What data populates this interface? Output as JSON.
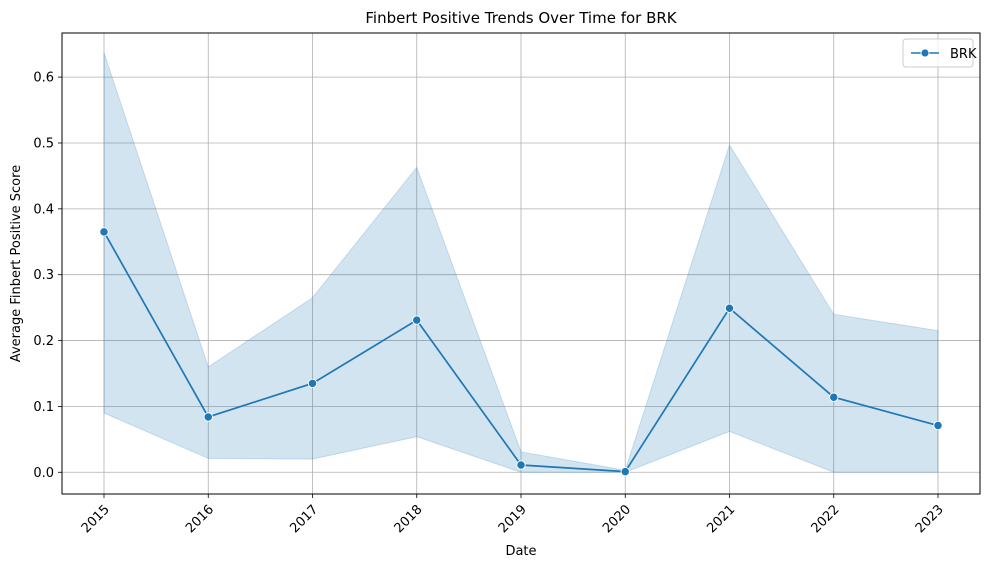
{
  "chart_data": {
    "type": "line",
    "title": "Finbert Positive Trends Over Time for BRK",
    "xlabel": "Date",
    "ylabel": "Average Finbert Positive Score",
    "x": [
      "2015",
      "2016",
      "2017",
      "2018",
      "2019",
      "2020",
      "2021",
      "2022",
      "2023"
    ],
    "series": [
      {
        "name": "BRK",
        "values": [
          0.365,
          0.084,
          0.135,
          0.231,
          0.011,
          0.001,
          0.249,
          0.114,
          0.071
        ],
        "ci_lower": [
          0.09,
          0.021,
          0.02,
          0.054,
          0.0,
          0.0,
          0.062,
          0.0,
          0.0
        ],
        "ci_upper": [
          0.637,
          0.16,
          0.265,
          0.463,
          0.031,
          0.003,
          0.497,
          0.24,
          0.215
        ],
        "color": "#1f77b4",
        "marker": "circle"
      }
    ],
    "ylim": [
      -0.033,
      0.667
    ],
    "yticks": [
      "0.0",
      "0.1",
      "0.2",
      "0.3",
      "0.4",
      "0.5",
      "0.6"
    ],
    "xtick_rotation": "45 degrees",
    "grid": true,
    "legend": "top-right",
    "band_color": "#1f77b4"
  }
}
